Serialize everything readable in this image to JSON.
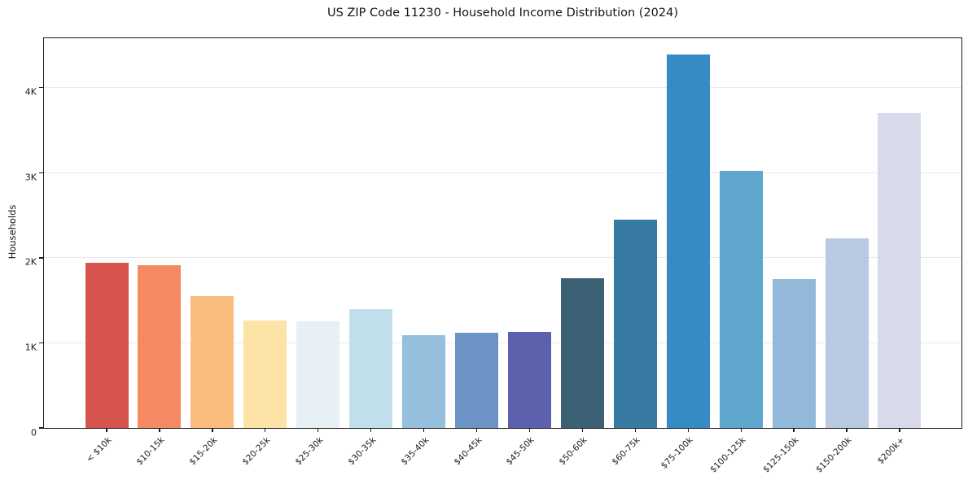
{
  "chart_data": {
    "type": "bar",
    "title": "US ZIP Code 11230 - Household Income Distribution (2024)",
    "xlabel": "",
    "ylabel": "Households",
    "categories": [
      "< $10k",
      "$10-15k",
      "$15-20k",
      "$20-25k",
      "$25-30k",
      "$30-35k",
      "$35-40k",
      "$40-45k",
      "$45-50k",
      "$50-60k",
      "$60-75k",
      "$75-100k",
      "$100-125k",
      "$125-150k",
      "$150-200k",
      "$200k+"
    ],
    "values": [
      1940,
      1910,
      1550,
      1260,
      1250,
      1400,
      1090,
      1120,
      1130,
      1760,
      2450,
      4390,
      3020,
      1750,
      2230,
      3700
    ],
    "bar_colors": [
      "#d6544d",
      "#f58a62",
      "#fbbd7e",
      "#fde3a6",
      "#e6f0f5",
      "#c1dfeb",
      "#94bfdd",
      "#6b93c6",
      "#5d60ac",
      "#3c6175",
      "#377ba3",
      "#368bc4",
      "#5ea6cc",
      "#92b9d9",
      "#b8c9e1",
      "#d8dae9"
    ],
    "ylim": [
      0,
      4600
    ],
    "yticks": [
      {
        "value": 0,
        "label": "0"
      },
      {
        "value": 1000,
        "label": "1K"
      },
      {
        "value": 2000,
        "label": "2K"
      },
      {
        "value": 3000,
        "label": "3K"
      },
      {
        "value": 4000,
        "label": "4K"
      }
    ],
    "grid": "horizontal",
    "legend": "none",
    "colors": {
      "grid": "#e9e9e9",
      "spine": "#1a1a1a",
      "text": "#1a1a1a",
      "background": "#ffffff"
    }
  }
}
